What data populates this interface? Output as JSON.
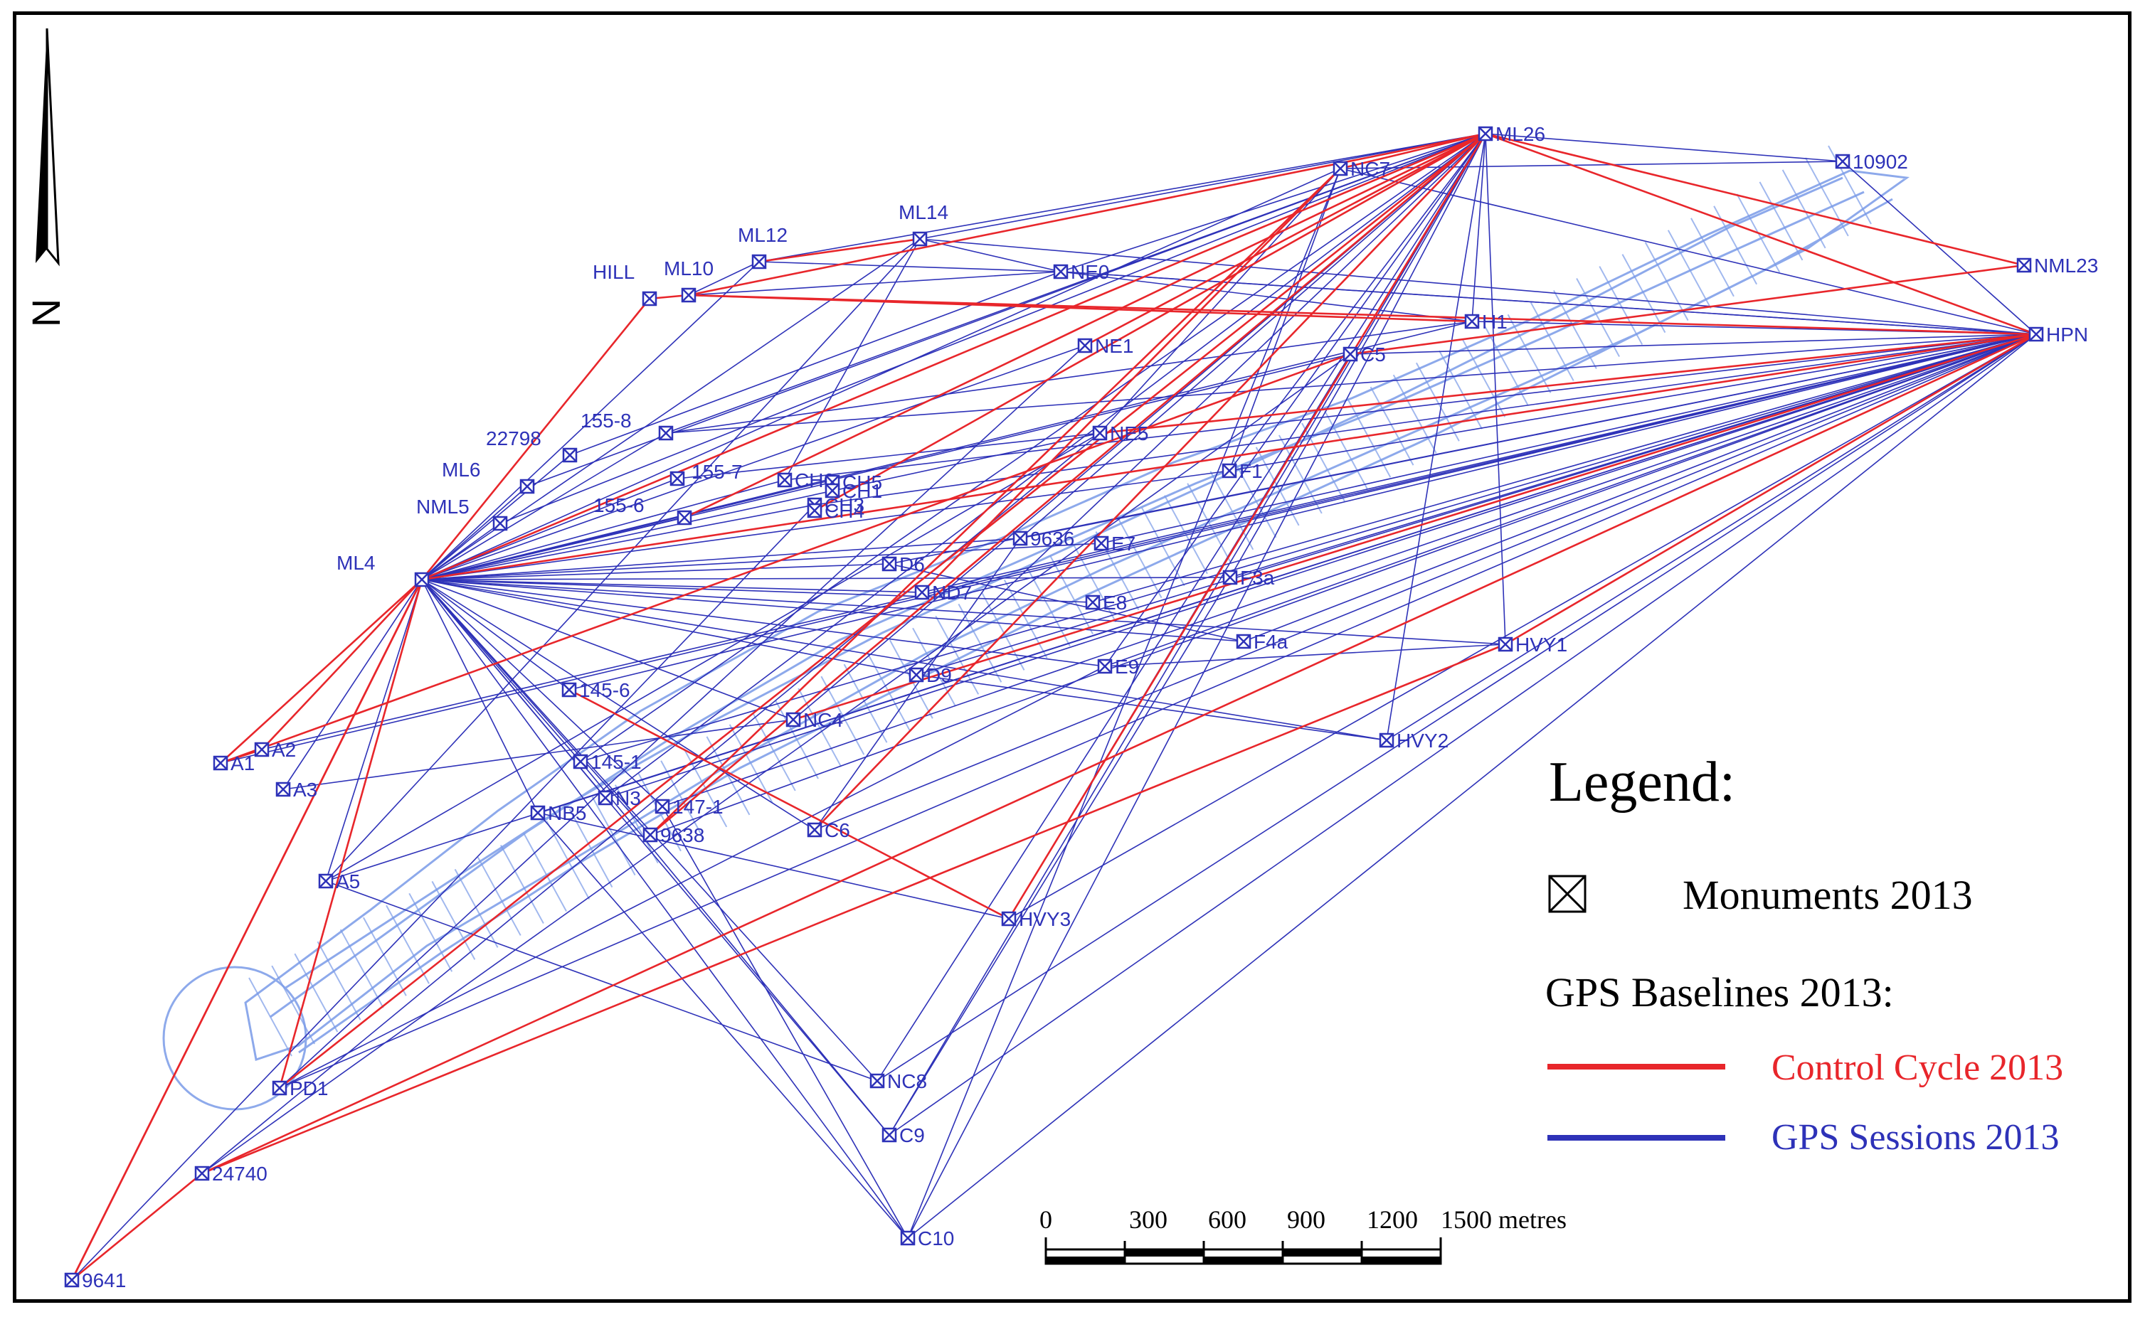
{
  "colors": {
    "control": "#e8262b",
    "sessions": "#2e32b8",
    "network": "#7a9be8",
    "label": "#2e32b8",
    "border": "#000000"
  },
  "north_arrow": {
    "symbol": "N",
    "icon": "north-arrow-icon"
  },
  "legend": {
    "title": "Legend:",
    "monuments": "Monuments 2013",
    "baselines_heading": "GPS Baselines 2013:",
    "control": "Control Cycle 2013",
    "sessions": "GPS Sessions 2013"
  },
  "scale_bar": {
    "ticks": [
      "0",
      "300",
      "600",
      "900",
      "1200",
      "1500 metres"
    ]
  },
  "stations": [
    {
      "id": "ML26",
      "label": "ML26"
    },
    {
      "id": "10902",
      "label": "10902"
    },
    {
      "id": "NC7",
      "label": "NC7"
    },
    {
      "id": "NML23",
      "label": "NML23"
    },
    {
      "id": "HPN",
      "label": "HPN"
    },
    {
      "id": "ML14",
      "label": "ML14"
    },
    {
      "id": "ML12",
      "label": "ML12"
    },
    {
      "id": "ML10",
      "label": "ML10"
    },
    {
      "id": "HILL",
      "label": "HILL"
    },
    {
      "id": "NE0",
      "label": "NE0"
    },
    {
      "id": "H1",
      "label": "H1"
    },
    {
      "id": "NE1",
      "label": "NE1"
    },
    {
      "id": "C5",
      "label": "C5"
    },
    {
      "id": "155-8",
      "label": "155-8"
    },
    {
      "id": "22798",
      "label": "22798"
    },
    {
      "id": "155-7",
      "label": "155-7"
    },
    {
      "id": "ML6",
      "label": "ML6"
    },
    {
      "id": "NML5",
      "label": "NML5"
    },
    {
      "id": "155-6",
      "label": "155-6"
    },
    {
      "id": "CH6",
      "label": "CH6"
    },
    {
      "id": "CH5",
      "label": "CH5"
    },
    {
      "id": "CH1",
      "label": "CH1"
    },
    {
      "id": "CH3",
      "label": "CH3"
    },
    {
      "id": "CH4",
      "label": "CH4"
    },
    {
      "id": "NE5",
      "label": "NE5"
    },
    {
      "id": "F1",
      "label": "F1"
    },
    {
      "id": "ML4",
      "label": "ML4"
    },
    {
      "id": "9636",
      "label": "9636"
    },
    {
      "id": "E7",
      "label": "E7"
    },
    {
      "id": "D6",
      "label": "D6"
    },
    {
      "id": "F3a",
      "label": "F3a"
    },
    {
      "id": "ND7",
      "label": "ND7"
    },
    {
      "id": "E8",
      "label": "E8"
    },
    {
      "id": "F4a",
      "label": "F4a"
    },
    {
      "id": "HVY1",
      "label": "HVY1"
    },
    {
      "id": "E9",
      "label": "E9"
    },
    {
      "id": "D9",
      "label": "D9"
    },
    {
      "id": "145-6",
      "label": "145-6"
    },
    {
      "id": "NC4",
      "label": "NC4"
    },
    {
      "id": "HVY2",
      "label": "HVY2"
    },
    {
      "id": "A2",
      "label": "A2"
    },
    {
      "id": "A1",
      "label": "A1"
    },
    {
      "id": "A3",
      "label": "A3"
    },
    {
      "id": "145-1",
      "label": "145-1"
    },
    {
      "id": "N3",
      "label": "N3"
    },
    {
      "id": "147-1",
      "label": "147-1"
    },
    {
      "id": "NB5",
      "label": "NB5"
    },
    {
      "id": "9638",
      "label": "9638"
    },
    {
      "id": "C6",
      "label": "C6"
    },
    {
      "id": "A5",
      "label": "A5"
    },
    {
      "id": "HVY3",
      "label": "HVY3"
    },
    {
      "id": "NC8",
      "label": "NC8"
    },
    {
      "id": "C9",
      "label": "C9"
    },
    {
      "id": "PD1",
      "label": "PD1"
    },
    {
      "id": "24740",
      "label": "24740"
    },
    {
      "id": "C10",
      "label": "C10"
    },
    {
      "id": "9641",
      "label": "9641"
    }
  ],
  "control_baselines": [
    [
      "ML26",
      "HPN"
    ],
    [
      "ML26",
      "NML23"
    ],
    [
      "ML26",
      "NC7"
    ],
    [
      "ML26",
      "ML4"
    ],
    [
      "ML26",
      "HVY3"
    ],
    [
      "ML26",
      "NE1"
    ],
    [
      "ML26",
      "155-6"
    ],
    [
      "ML26",
      "C6"
    ],
    [
      "ML26",
      "CH4"
    ],
    [
      "ML26",
      "9638"
    ],
    [
      "ML26",
      "ML10"
    ],
    [
      "HPN",
      "ML10"
    ],
    [
      "HPN",
      "ML4"
    ],
    [
      "HPN",
      "24740"
    ],
    [
      "HPN",
      "HVY1"
    ],
    [
      "HPN",
      "NE5"
    ],
    [
      "HPN",
      "NC4"
    ],
    [
      "NML23",
      "C5"
    ],
    [
      "ML4",
      "A1"
    ],
    [
      "ML4",
      "A2"
    ],
    [
      "ML4",
      "HILL"
    ],
    [
      "ML4",
      "9641"
    ],
    [
      "ML4",
      "PD1"
    ],
    [
      "HILL",
      "ML10"
    ],
    [
      "A1",
      "A2"
    ],
    [
      "A1",
      "C5"
    ],
    [
      "9641",
      "24740"
    ],
    [
      "9641",
      "ML4"
    ],
    [
      "HVY1",
      "24740"
    ],
    [
      "145-6",
      "HVY3"
    ],
    [
      "NC7",
      "ND7"
    ],
    [
      "NC7",
      "9638"
    ],
    [
      "ML12",
      "ML14"
    ],
    [
      "ML10",
      "H1"
    ],
    [
      "ML26",
      "PD1"
    ]
  ],
  "session_baselines": [
    [
      "ML26",
      "10902"
    ],
    [
      "10902",
      "HPN"
    ],
    [
      "ML26",
      "ML12"
    ],
    [
      "ML26",
      "ML14"
    ],
    [
      "ML26",
      "NE0"
    ],
    [
      "ML26",
      "H1"
    ],
    [
      "ML26",
      "HVY1"
    ],
    [
      "ML26",
      "E9"
    ],
    [
      "ML26",
      "D9"
    ],
    [
      "ML26",
      "NC4"
    ],
    [
      "ML26",
      "C10"
    ],
    [
      "ML26",
      "NC8"
    ],
    [
      "ML26",
      "C9"
    ],
    [
      "ML26",
      "N3"
    ],
    [
      "ML26",
      "155-8"
    ],
    [
      "ML26",
      "ML6"
    ],
    [
      "ML26",
      "NML5"
    ],
    [
      "ML26",
      "F1"
    ],
    [
      "ML26",
      "9636"
    ],
    [
      "ML26",
      "HVY2"
    ],
    [
      "ML26",
      "F3a"
    ],
    [
      "ML26",
      "145-1"
    ],
    [
      "HPN",
      "ML14"
    ],
    [
      "HPN",
      "NE0"
    ],
    [
      "HPN",
      "H1"
    ],
    [
      "HPN",
      "C5"
    ],
    [
      "HPN",
      "F1"
    ],
    [
      "HPN",
      "9636"
    ],
    [
      "HPN",
      "E7"
    ],
    [
      "HPN",
      "D6"
    ],
    [
      "HPN",
      "F3a"
    ],
    [
      "HPN",
      "ND7"
    ],
    [
      "HPN",
      "E8"
    ],
    [
      "HPN",
      "F4a"
    ],
    [
      "HPN",
      "E9"
    ],
    [
      "HPN",
      "D9"
    ],
    [
      "HPN",
      "145-6"
    ],
    [
      "HPN",
      "145-1"
    ],
    [
      "HPN",
      "N3"
    ],
    [
      "HPN",
      "147-1"
    ],
    [
      "HPN",
      "NB5"
    ],
    [
      "HPN",
      "9638"
    ],
    [
      "HPN",
      "C6"
    ],
    [
      "HPN",
      "HVY2"
    ],
    [
      "HPN",
      "HVY3"
    ],
    [
      "HPN",
      "NC8"
    ],
    [
      "HPN",
      "C9"
    ],
    [
      "HPN",
      "C10"
    ],
    [
      "HPN",
      "A5"
    ],
    [
      "HPN",
      "PD1"
    ],
    [
      "HPN",
      "CH3"
    ],
    [
      "HPN",
      "155-8"
    ],
    [
      "HPN",
      "CH6"
    ],
    [
      "ML4",
      "NC7"
    ],
    [
      "ML4",
      "ML12"
    ],
    [
      "ML4",
      "ML14"
    ],
    [
      "ML4",
      "H1"
    ],
    [
      "ML4",
      "NE1"
    ],
    [
      "ML4",
      "C5"
    ],
    [
      "ML4",
      "155-8"
    ],
    [
      "ML4",
      "155-7"
    ],
    [
      "ML4",
      "22798"
    ],
    [
      "ML4",
      "ML6"
    ],
    [
      "ML4",
      "NML5"
    ],
    [
      "ML4",
      "155-6"
    ],
    [
      "ML4",
      "CH6"
    ],
    [
      "ML4",
      "CH5"
    ],
    [
      "ML4",
      "CH3"
    ],
    [
      "ML4",
      "NE5"
    ],
    [
      "ML4",
      "F1"
    ],
    [
      "ML4",
      "9636"
    ],
    [
      "ML4",
      "E7"
    ],
    [
      "ML4",
      "D6"
    ],
    [
      "ML4",
      "F3a"
    ],
    [
      "ML4",
      "ND7"
    ],
    [
      "ML4",
      "E8"
    ],
    [
      "ML4",
      "F4a"
    ],
    [
      "ML4",
      "HVY1"
    ],
    [
      "ML4",
      "E9"
    ],
    [
      "ML4",
      "D9"
    ],
    [
      "ML4",
      "145-6"
    ],
    [
      "ML4",
      "NC4"
    ],
    [
      "ML4",
      "A3"
    ],
    [
      "ML4",
      "145-1"
    ],
    [
      "ML4",
      "N3"
    ],
    [
      "ML4",
      "147-1"
    ],
    [
      "ML4",
      "NB5"
    ],
    [
      "ML4",
      "9638"
    ],
    [
      "ML4",
      "C6"
    ],
    [
      "ML4",
      "A5"
    ],
    [
      "ML4",
      "NC8"
    ],
    [
      "ML4",
      "C9"
    ],
    [
      "ML4",
      "C10"
    ],
    [
      "ML4",
      "HVY2"
    ],
    [
      "ML12",
      "NE0"
    ],
    [
      "ML14",
      "NE0"
    ],
    [
      "ML14",
      "CH6"
    ],
    [
      "ML10",
      "ML12"
    ],
    [
      "ML10",
      "NE0"
    ],
    [
      "NE0",
      "H1"
    ],
    [
      "NE0",
      "HPN"
    ],
    [
      "NC7",
      "HPN"
    ],
    [
      "NC7",
      "NE5"
    ],
    [
      "NC7",
      "F1"
    ],
    [
      "NC7",
      "C10"
    ],
    [
      "10902",
      "NC7"
    ],
    [
      "A1",
      "HPN"
    ],
    [
      "A2",
      "HPN"
    ],
    [
      "A3",
      "NC4"
    ],
    [
      "A5",
      "NE5"
    ],
    [
      "24740",
      "C5"
    ],
    [
      "24740",
      "NE5"
    ],
    [
      "HVY3",
      "C5"
    ],
    [
      "HVY2",
      "D9"
    ],
    [
      "HVY1",
      "E9"
    ],
    [
      "C10",
      "NB5"
    ],
    [
      "C9",
      "145-1"
    ],
    [
      "NC8",
      "A5"
    ],
    [
      "C10",
      "147-1"
    ],
    [
      "C9",
      "F3a"
    ],
    [
      "PD1",
      "E9"
    ],
    [
      "PD1",
      "NE1"
    ],
    [
      "9641",
      "CH3"
    ],
    [
      "A5",
      "ML14"
    ],
    [
      "F4a",
      "D6"
    ],
    [
      "155-8",
      "H1"
    ],
    [
      "155-7",
      "NE5"
    ],
    [
      "22798",
      "NE0"
    ],
    [
      "C6",
      "9636"
    ],
    [
      "HVY3",
      "NB5"
    ]
  ]
}
